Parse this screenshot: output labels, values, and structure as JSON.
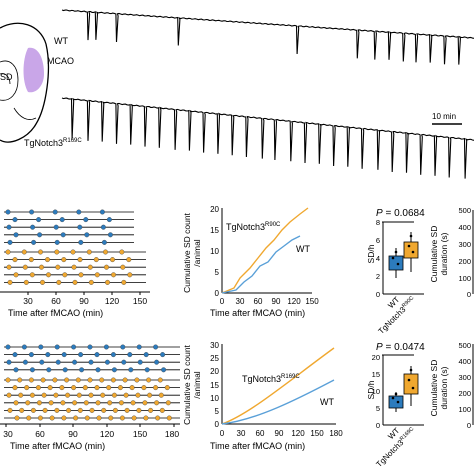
{
  "figure": {
    "brain": {
      "label_sd": "SD",
      "label_mcao": "MCAO"
    },
    "traces": {
      "wt_label": "WT",
      "tg_label_base": "TgNotch3",
      "tg_label_sup": "R169C",
      "scale_label": "10 min"
    },
    "raster_top": {
      "xlabel": "Time after fMCAO (min)",
      "ticks": [
        "30",
        "60",
        "90",
        "120",
        "150"
      ]
    },
    "raster_bottom": {
      "xlabel": "Time after fMCAO (min)",
      "ticks": [
        "30",
        "60",
        "90",
        "120",
        "150",
        "180"
      ]
    },
    "cum_top": {
      "ylabel_1": "Cumulative SD count",
      "ylabel_2": "/animal",
      "yticks": [
        "0",
        "5",
        "10",
        "15",
        "20"
      ],
      "xticks": [
        "0",
        "30",
        "60",
        "90",
        "120",
        "150"
      ],
      "xlabel": "Time after fMCAO (min)",
      "label_tg_base": "TgNotch3",
      "label_tg_sup": "R90C",
      "label_wt": "WT"
    },
    "cum_bottom": {
      "ylabel_1": "Cumulative SD count",
      "ylabel_2": "/animal",
      "yticks": [
        "0",
        "5",
        "10",
        "15",
        "20",
        "25",
        "30"
      ],
      "xticks": [
        "0",
        "30",
        "60",
        "90",
        "120",
        "150",
        "180"
      ],
      "xlabel": "Time after fMCAO (min)",
      "label_tg_base": "TgNotch3",
      "label_tg_sup": "R169C",
      "label_wt": "WT"
    },
    "box_top": {
      "p_label": "P",
      "p_value": "= 0.0684",
      "ylabel": "SD/h",
      "yticks": [
        "0",
        "2",
        "4",
        "6",
        "8"
      ],
      "xcat_wt": "WT",
      "xcat_tg_base": "TgNotch3",
      "xcat_tg_sup": "R90C"
    },
    "box_bottom": {
      "p_label": "P",
      "p_value": "= 0.0474",
      "ylabel": "SD/h",
      "yticks": [
        "0",
        "5",
        "10",
        "15",
        "20"
      ],
      "xcat_wt": "WT",
      "xcat_tg_base": "TgNotch3",
      "xcat_tg_sup": "R169C"
    },
    "dur_top": {
      "ylabel_1": "Cumulative SD",
      "ylabel_2": "duration (s)",
      "yticks": [
        "0",
        "100",
        "200",
        "300",
        "400",
        "500"
      ]
    },
    "dur_bottom": {
      "ylabel_1": "Cumulative SD",
      "ylabel_2": "duration (s)",
      "yticks": [
        "0",
        "100",
        "200",
        "300",
        "400",
        "500"
      ]
    },
    "colors": {
      "wt": "#2c7bbd",
      "tg": "#f0a830",
      "mcao": "#c9a6e8"
    }
  }
}
